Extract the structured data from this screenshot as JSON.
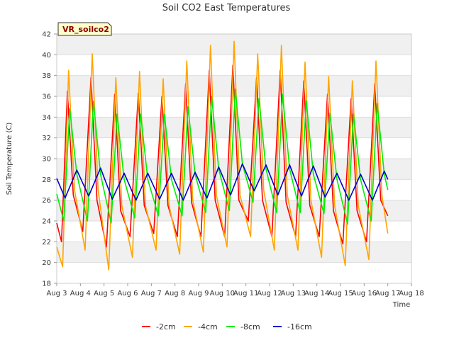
{
  "chart_data": {
    "type": "line",
    "title": "Soil CO2 East Temperatures",
    "station_label": "VR_soilco2",
    "xlabel": "Time",
    "ylabel": "Soil Temperature (C)",
    "xlim": [
      3,
      18
    ],
    "ylim": [
      18,
      42
    ],
    "x_ticks": [
      {
        "value": 3,
        "label": "Aug 3"
      },
      {
        "value": 4,
        "label": "Aug 4"
      },
      {
        "value": 5,
        "label": "Aug 5"
      },
      {
        "value": 6,
        "label": "Aug 6"
      },
      {
        "value": 7,
        "label": "Aug 7"
      },
      {
        "value": 8,
        "label": "Aug 8"
      },
      {
        "value": 9,
        "label": "Aug 9"
      },
      {
        "value": 10,
        "label": "Aug 10"
      },
      {
        "value": 11,
        "label": "Aug 11"
      },
      {
        "value": 12,
        "label": "Aug 12"
      },
      {
        "value": 13,
        "label": "Aug 13"
      },
      {
        "value": 14,
        "label": "Aug 14"
      },
      {
        "value": 15,
        "label": "Aug 15"
      },
      {
        "value": 16,
        "label": "Aug 16"
      },
      {
        "value": 17,
        "label": "Aug 17"
      },
      {
        "value": 18,
        "label": "Aug 18"
      }
    ],
    "y_ticks": [
      18,
      20,
      22,
      24,
      26,
      28,
      30,
      32,
      34,
      36,
      38,
      40,
      42
    ],
    "series": [
      {
        "name": "-2cm",
        "color": "#ff0000",
        "x": [
          3.0,
          3.2,
          3.45,
          3.7,
          4.1,
          4.45,
          4.7,
          5.1,
          5.45,
          5.7,
          6.1,
          6.45,
          6.7,
          7.1,
          7.45,
          7.7,
          8.1,
          8.45,
          8.7,
          9.1,
          9.45,
          9.7,
          10.1,
          10.45,
          10.7,
          11.1,
          11.45,
          11.7,
          12.1,
          12.45,
          12.7,
          13.1,
          13.45,
          13.7,
          14.1,
          14.45,
          14.7,
          15.1,
          15.45,
          15.7,
          16.1,
          16.45,
          16.7,
          17.0
        ],
        "values": [
          23.8,
          22.0,
          36.5,
          26.5,
          23.0,
          37.8,
          26.0,
          21.5,
          36.2,
          25.0,
          22.5,
          36.3,
          25.5,
          22.8,
          36.0,
          25.5,
          22.5,
          37.2,
          25.8,
          22.5,
          38.5,
          26.0,
          22.5,
          39.0,
          26.0,
          24.0,
          37.8,
          26.0,
          22.5,
          38.5,
          25.8,
          22.5,
          37.5,
          25.5,
          22.5,
          36.2,
          25.0,
          21.8,
          35.8,
          25.0,
          22.0,
          37.2,
          26.0,
          24.5
        ]
      },
      {
        "name": "-4cm",
        "color": "#ffa500",
        "x": [
          3.0,
          3.25,
          3.5,
          3.75,
          4.2,
          4.5,
          4.75,
          5.2,
          5.5,
          5.75,
          6.2,
          6.5,
          6.75,
          7.2,
          7.5,
          7.75,
          8.2,
          8.5,
          8.75,
          9.2,
          9.5,
          9.75,
          10.2,
          10.5,
          10.75,
          11.2,
          11.5,
          11.75,
          12.2,
          12.5,
          12.75,
          13.2,
          13.5,
          13.75,
          14.2,
          14.5,
          14.75,
          15.2,
          15.5,
          15.75,
          16.2,
          16.5,
          16.75,
          17.0
        ],
        "values": [
          21.5,
          19.6,
          38.5,
          27.0,
          21.2,
          40.1,
          27.0,
          19.3,
          37.8,
          25.5,
          20.5,
          38.4,
          25.5,
          21.2,
          37.7,
          25.5,
          20.8,
          39.4,
          26.0,
          21.0,
          40.9,
          26.5,
          21.5,
          41.3,
          26.5,
          22.5,
          40.1,
          27.0,
          21.2,
          40.9,
          26.5,
          21.2,
          39.3,
          26.0,
          20.5,
          37.9,
          25.5,
          19.7,
          37.5,
          25.5,
          20.3,
          39.4,
          26.5,
          22.8
        ]
      },
      {
        "name": "-8cm",
        "color": "#00ee00",
        "x": [
          3.0,
          3.3,
          3.55,
          3.85,
          4.3,
          4.55,
          4.85,
          5.3,
          5.55,
          5.85,
          6.3,
          6.55,
          6.85,
          7.3,
          7.55,
          7.85,
          8.3,
          8.55,
          8.85,
          9.3,
          9.55,
          9.85,
          10.3,
          10.55,
          10.85,
          11.3,
          11.55,
          11.85,
          12.3,
          12.55,
          12.85,
          13.3,
          13.55,
          13.85,
          14.3,
          14.55,
          14.85,
          15.3,
          15.55,
          15.85,
          16.3,
          16.55,
          16.85,
          17.0
        ],
        "values": [
          26.6,
          24.0,
          34.8,
          28.5,
          24.0,
          35.5,
          28.5,
          23.8,
          34.3,
          28.0,
          24.3,
          34.3,
          28.0,
          24.5,
          34.3,
          28.0,
          24.5,
          35.0,
          28.5,
          24.8,
          36.0,
          29.0,
          25.0,
          36.7,
          29.5,
          25.8,
          35.8,
          29.0,
          24.8,
          36.2,
          29.0,
          24.8,
          35.6,
          28.5,
          24.7,
          34.4,
          28.0,
          23.7,
          34.3,
          28.0,
          24.0,
          35.3,
          28.5,
          27.0
        ]
      },
      {
        "name": "-16cm",
        "color": "#0000cc",
        "x": [
          3.0,
          3.35,
          3.85,
          4.35,
          4.85,
          5.35,
          5.85,
          6.35,
          6.85,
          7.35,
          7.85,
          8.35,
          8.85,
          9.35,
          9.85,
          10.35,
          10.85,
          11.35,
          11.85,
          12.35,
          12.85,
          13.35,
          13.85,
          14.35,
          14.85,
          15.35,
          15.85,
          16.35,
          16.85,
          17.0
        ],
        "values": [
          28.1,
          26.2,
          28.9,
          26.4,
          29.1,
          26.1,
          28.6,
          26.0,
          28.6,
          26.1,
          28.6,
          26.0,
          28.7,
          26.2,
          29.2,
          26.5,
          29.5,
          26.9,
          29.4,
          26.5,
          29.4,
          26.4,
          29.3,
          26.3,
          28.6,
          26.0,
          28.5,
          26.0,
          28.8,
          28.0
        ]
      }
    ]
  }
}
